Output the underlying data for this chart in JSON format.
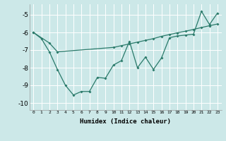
{
  "xlabel": "Humidex (Indice chaleur)",
  "ylabel": "",
  "bg_color": "#cce8e8",
  "grid_color": "#ffffff",
  "line_color": "#2a7a6a",
  "xlim": [
    -0.5,
    23.5
  ],
  "ylim": [
    -10.4,
    -4.4
  ],
  "yticks": [
    -10,
    -9,
    -8,
    -7,
    -6,
    -5
  ],
  "xticks": [
    0,
    1,
    2,
    3,
    4,
    5,
    6,
    7,
    8,
    9,
    10,
    11,
    12,
    13,
    14,
    15,
    16,
    17,
    18,
    19,
    20,
    21,
    22,
    23
  ],
  "line1_x": [
    0,
    1,
    2,
    3,
    4,
    5,
    6,
    7,
    8,
    9,
    10,
    11,
    12,
    13,
    14,
    15,
    16,
    17,
    18,
    19,
    20,
    21,
    22,
    23
  ],
  "line1_y": [
    -6.0,
    -6.35,
    -7.1,
    -8.1,
    -9.0,
    -9.55,
    -9.35,
    -9.35,
    -8.55,
    -8.6,
    -7.85,
    -7.6,
    -6.5,
    -8.0,
    -7.4,
    -8.1,
    -7.45,
    -6.3,
    -6.2,
    -6.15,
    -6.1,
    -4.8,
    -5.55,
    -4.9
  ],
  "line2_x": [
    0,
    2,
    3,
    10,
    11,
    12,
    13,
    14,
    15,
    16,
    17,
    18,
    19,
    20,
    21,
    22,
    23
  ],
  "line2_y": [
    -6.0,
    -6.6,
    -7.1,
    -6.85,
    -6.75,
    -6.65,
    -6.55,
    -6.45,
    -6.35,
    -6.22,
    -6.12,
    -6.02,
    -5.93,
    -5.83,
    -5.72,
    -5.62,
    -5.52
  ]
}
